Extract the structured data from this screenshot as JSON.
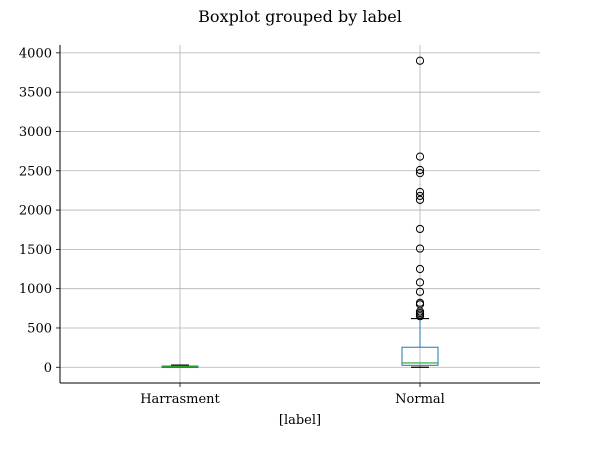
{
  "chart_data": {
    "type": "boxplot",
    "title": "Boxplot grouped by label",
    "xlabel": "[label]",
    "ylabel": "",
    "ylim": [
      -200,
      4100
    ],
    "yticks": [
      0,
      500,
      1000,
      1500,
      2000,
      2500,
      3000,
      3500,
      4000
    ],
    "grid": true,
    "categories": [
      "Harrasment",
      "Normal"
    ],
    "boxes": [
      {
        "name": "Harrasment",
        "whisker_low": 2,
        "q1": 5,
        "median": 10,
        "q3": 16,
        "whisker_high": 28,
        "outliers": []
      },
      {
        "name": "Normal",
        "whisker_low": 0,
        "q1": 25,
        "median": 55,
        "q3": 255,
        "whisker_high": 620,
        "outliers": [
          650,
          670,
          690,
          710,
          800,
          820,
          960,
          1080,
          1250,
          1510,
          1760,
          2130,
          2180,
          2230,
          2470,
          2510,
          2680,
          3900
        ]
      }
    ],
    "colors": {
      "box": "#1f77b4",
      "median": "#2ca02c",
      "whisker": "#1f77b4",
      "cap": "#000000",
      "grid": "#b0b0b0",
      "axis": "#000000"
    }
  }
}
